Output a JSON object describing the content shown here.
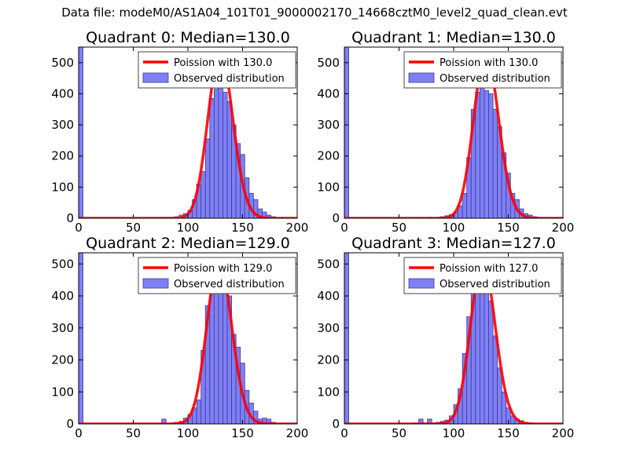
{
  "figure": {
    "title": "Data file: modeM0/AS1A04_101T01_9000002170_14668cztM0_level2_quad_clean.evt"
  },
  "colors": {
    "bar_fill": "#7f7ff7",
    "bar_edge": "#3d3d8c",
    "poisson_line": "#ff0000",
    "axis": "#000000",
    "legend_edge": "#444444"
  },
  "chart_data": [
    {
      "type": "bar",
      "title": "Quadrant 0: Median=130.0",
      "xlim": [
        0,
        200
      ],
      "ylim": [
        0,
        550
      ],
      "xticks": [
        0,
        50,
        100,
        150,
        200
      ],
      "yticks": [
        0,
        100,
        200,
        300,
        400,
        500
      ],
      "bin_width": 4,
      "bins": [
        {
          "x": 0,
          "count": 550
        },
        {
          "x": 76,
          "count": 2
        },
        {
          "x": 80,
          "count": 2
        },
        {
          "x": 84,
          "count": 3
        },
        {
          "x": 88,
          "count": 5
        },
        {
          "x": 92,
          "count": 10
        },
        {
          "x": 96,
          "count": 15
        },
        {
          "x": 100,
          "count": 25
        },
        {
          "x": 104,
          "count": 60
        },
        {
          "x": 108,
          "count": 110
        },
        {
          "x": 112,
          "count": 150
        },
        {
          "x": 116,
          "count": 255
        },
        {
          "x": 120,
          "count": 385
        },
        {
          "x": 124,
          "count": 415
        },
        {
          "x": 128,
          "count": 420
        },
        {
          "x": 132,
          "count": 405
        },
        {
          "x": 136,
          "count": 375
        },
        {
          "x": 140,
          "count": 300
        },
        {
          "x": 144,
          "count": 240
        },
        {
          "x": 148,
          "count": 205
        },
        {
          "x": 152,
          "count": 130
        },
        {
          "x": 156,
          "count": 80
        },
        {
          "x": 160,
          "count": 60
        },
        {
          "x": 164,
          "count": 30
        },
        {
          "x": 168,
          "count": 20
        },
        {
          "x": 172,
          "count": 10
        },
        {
          "x": 176,
          "count": 5
        },
        {
          "x": 184,
          "count": 2
        }
      ],
      "poisson": {
        "mean": 130.0,
        "peak": 530,
        "label": "Poission with 130.0"
      },
      "legend": [
        "Poission with 130.0",
        "Observed distribution"
      ]
    },
    {
      "type": "bar",
      "title": "Quadrant 1: Median=130.0",
      "xlim": [
        0,
        200
      ],
      "ylim": [
        0,
        550
      ],
      "xticks": [
        0,
        50,
        100,
        150,
        200
      ],
      "yticks": [
        0,
        100,
        200,
        300,
        400,
        500
      ],
      "bin_width": 4,
      "bins": [
        {
          "x": 0,
          "count": 550
        },
        {
          "x": 68,
          "count": 2
        },
        {
          "x": 76,
          "count": 3
        },
        {
          "x": 84,
          "count": 3
        },
        {
          "x": 88,
          "count": 5
        },
        {
          "x": 92,
          "count": 8
        },
        {
          "x": 96,
          "count": 12
        },
        {
          "x": 100,
          "count": 20
        },
        {
          "x": 104,
          "count": 40
        },
        {
          "x": 108,
          "count": 80
        },
        {
          "x": 112,
          "count": 195
        },
        {
          "x": 116,
          "count": 350
        },
        {
          "x": 120,
          "count": 405
        },
        {
          "x": 124,
          "count": 465
        },
        {
          "x": 128,
          "count": 410
        },
        {
          "x": 132,
          "count": 400
        },
        {
          "x": 136,
          "count": 350
        },
        {
          "x": 140,
          "count": 295
        },
        {
          "x": 144,
          "count": 210
        },
        {
          "x": 148,
          "count": 145
        },
        {
          "x": 152,
          "count": 80
        },
        {
          "x": 156,
          "count": 60
        },
        {
          "x": 160,
          "count": 30
        },
        {
          "x": 164,
          "count": 15
        },
        {
          "x": 168,
          "count": 10
        },
        {
          "x": 172,
          "count": 5
        },
        {
          "x": 176,
          "count": 2
        }
      ],
      "poisson": {
        "mean": 130.0,
        "peak": 530,
        "label": "Poission with 130.0"
      },
      "legend": [
        "Poission with 130.0",
        "Observed distribution"
      ]
    },
    {
      "type": "bar",
      "title": "Quadrant 2: Median=129.0",
      "xlim": [
        0,
        200
      ],
      "ylim": [
        0,
        535
      ],
      "xticks": [
        0,
        50,
        100,
        150,
        200
      ],
      "yticks": [
        0,
        100,
        200,
        300,
        400,
        500
      ],
      "bin_width": 4,
      "bins": [
        {
          "x": 0,
          "count": 535
        },
        {
          "x": 76,
          "count": 15
        },
        {
          "x": 84,
          "count": 3
        },
        {
          "x": 88,
          "count": 5
        },
        {
          "x": 92,
          "count": 8
        },
        {
          "x": 96,
          "count": 18
        },
        {
          "x": 100,
          "count": 30
        },
        {
          "x": 104,
          "count": 50
        },
        {
          "x": 108,
          "count": 75
        },
        {
          "x": 112,
          "count": 230
        },
        {
          "x": 116,
          "count": 370
        },
        {
          "x": 120,
          "count": 425
        },
        {
          "x": 124,
          "count": 410
        },
        {
          "x": 128,
          "count": 465
        },
        {
          "x": 132,
          "count": 410
        },
        {
          "x": 136,
          "count": 400
        },
        {
          "x": 140,
          "count": 280
        },
        {
          "x": 144,
          "count": 240
        },
        {
          "x": 148,
          "count": 190
        },
        {
          "x": 152,
          "count": 105
        },
        {
          "x": 156,
          "count": 65
        },
        {
          "x": 160,
          "count": 40
        },
        {
          "x": 164,
          "count": 15
        },
        {
          "x": 168,
          "count": 18
        },
        {
          "x": 172,
          "count": 15
        },
        {
          "x": 176,
          "count": 5
        },
        {
          "x": 184,
          "count": 2
        }
      ],
      "poisson": {
        "mean": 129.0,
        "peak": 510,
        "label": "Poission with 129.0"
      },
      "legend": [
        "Poission with 129.0",
        "Observed distribution"
      ]
    },
    {
      "type": "bar",
      "title": "Quadrant 3: Median=127.0",
      "xlim": [
        0,
        200
      ],
      "ylim": [
        0,
        535
      ],
      "xticks": [
        0,
        50,
        100,
        150,
        200
      ],
      "yticks": [
        0,
        100,
        200,
        300,
        400,
        500
      ],
      "bin_width": 4,
      "bins": [
        {
          "x": 0,
          "count": 535
        },
        {
          "x": 64,
          "count": 3
        },
        {
          "x": 68,
          "count": 15
        },
        {
          "x": 72,
          "count": 3
        },
        {
          "x": 76,
          "count": 15
        },
        {
          "x": 80,
          "count": 3
        },
        {
          "x": 84,
          "count": 5
        },
        {
          "x": 88,
          "count": 8
        },
        {
          "x": 92,
          "count": 12
        },
        {
          "x": 96,
          "count": 25
        },
        {
          "x": 100,
          "count": 60
        },
        {
          "x": 104,
          "count": 110
        },
        {
          "x": 108,
          "count": 220
        },
        {
          "x": 112,
          "count": 335
        },
        {
          "x": 116,
          "count": 430
        },
        {
          "x": 120,
          "count": 480
        },
        {
          "x": 124,
          "count": 440
        },
        {
          "x": 128,
          "count": 410
        },
        {
          "x": 132,
          "count": 385
        },
        {
          "x": 136,
          "count": 275
        },
        {
          "x": 140,
          "count": 175
        },
        {
          "x": 144,
          "count": 100
        },
        {
          "x": 148,
          "count": 50
        },
        {
          "x": 152,
          "count": 25
        },
        {
          "x": 156,
          "count": 15
        },
        {
          "x": 160,
          "count": 10
        },
        {
          "x": 164,
          "count": 5
        },
        {
          "x": 168,
          "count": 2
        }
      ],
      "poisson": {
        "mean": 127.0,
        "peak": 510,
        "label": "Poission with 127.0"
      },
      "legend": [
        "Poission with 127.0",
        "Observed distribution"
      ]
    }
  ]
}
